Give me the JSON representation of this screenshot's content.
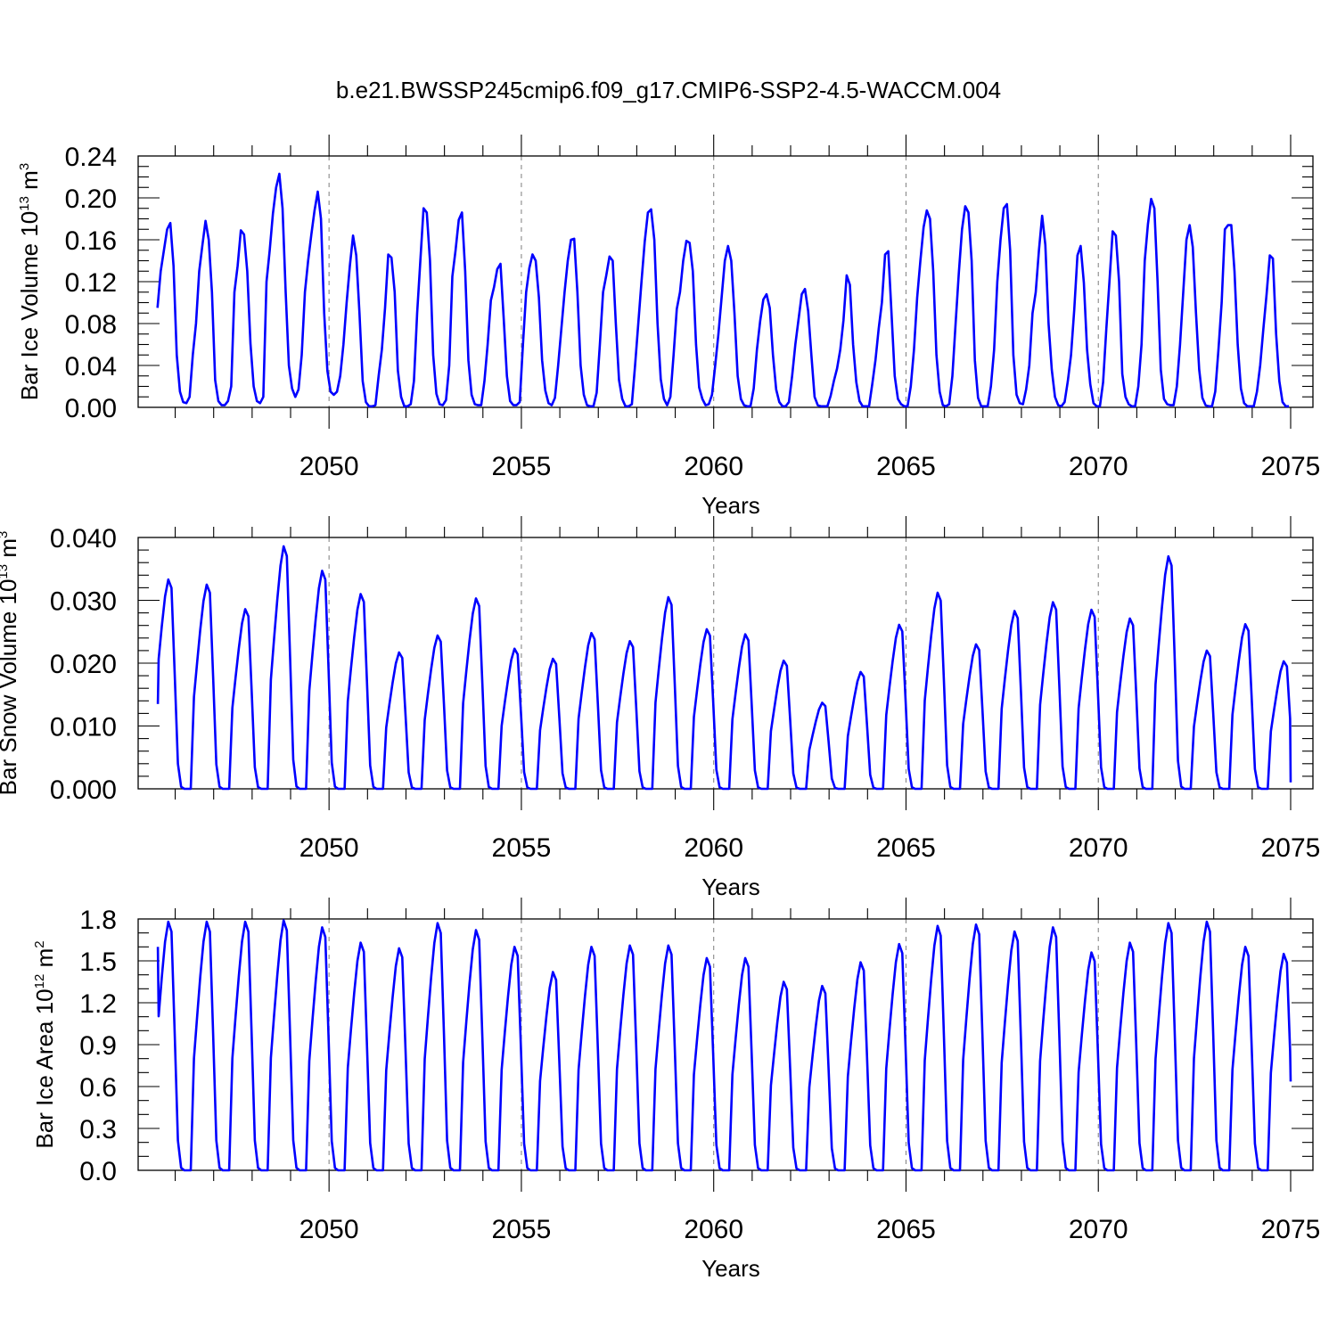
{
  "title": "b.e21.BWSSP245cmip6.f09_g17.CMIP6-SSP2-4.5-WACCM.004",
  "colors": {
    "line": "#0000ff",
    "grid": "#888888",
    "axis": "#000000"
  },
  "chart_data": [
    {
      "type": "line",
      "series_name": "Bar Ice Volume",
      "ylabel": {
        "text": "Bar Ice Volume 10",
        "sup1": "13",
        "unit": " m",
        "sup2": "3"
      },
      "xlabel": "Years",
      "xlim": [
        2045.5,
        2075
      ],
      "ylim": [
        0,
        0.24
      ],
      "yticks": [
        0.0,
        0.04,
        0.08,
        0.12,
        0.16,
        0.2,
        0.24
      ],
      "yticklabels": [
        "0.00",
        "0.04",
        "0.08",
        "0.12",
        "0.16",
        "0.20",
        "0.24"
      ],
      "yminor_step": 0.01,
      "xticks": [
        2050,
        2055,
        2060,
        2065,
        2070,
        2075
      ],
      "xticklabels": [
        "2050",
        "2055",
        "2060",
        "2065",
        "2070",
        "2075"
      ],
      "vlines": [
        2050,
        2055,
        2060,
        2065,
        2070
      ],
      "x_start": 2045.54,
      "x_step": 0.0833333,
      "values": [
        0.095,
        0.13,
        0.15,
        0.17,
        0.176,
        0.135,
        0.05,
        0.015,
        0.005,
        0.004,
        0.01,
        0.05,
        0.08,
        0.13,
        0.155,
        0.178,
        0.16,
        0.11,
        0.026,
        0.006,
        0.002,
        0.002,
        0.006,
        0.02,
        0.11,
        0.135,
        0.169,
        0.165,
        0.13,
        0.061,
        0.02,
        0.006,
        0.004,
        0.01,
        0.12,
        0.15,
        0.185,
        0.21,
        0.223,
        0.19,
        0.11,
        0.04,
        0.018,
        0.01,
        0.017,
        0.05,
        0.11,
        0.14,
        0.165,
        0.188,
        0.206,
        0.18,
        0.09,
        0.035,
        0.015,
        0.012,
        0.015,
        0.03,
        0.06,
        0.1,
        0.135,
        0.164,
        0.145,
        0.09,
        0.025,
        0.005,
        0.001,
        0.001,
        0.002,
        0.03,
        0.055,
        0.095,
        0.146,
        0.143,
        0.11,
        0.035,
        0.01,
        0.001,
        0.001,
        0.003,
        0.025,
        0.09,
        0.14,
        0.19,
        0.186,
        0.14,
        0.05,
        0.013,
        0.003,
        0.002,
        0.007,
        0.04,
        0.125,
        0.15,
        0.179,
        0.186,
        0.13,
        0.045,
        0.012,
        0.003,
        0.002,
        0.002,
        0.025,
        0.06,
        0.102,
        0.115,
        0.132,
        0.137,
        0.085,
        0.03,
        0.006,
        0.002,
        0.002,
        0.005,
        0.06,
        0.11,
        0.133,
        0.146,
        0.14,
        0.105,
        0.045,
        0.016,
        0.004,
        0.002,
        0.009,
        0.04,
        0.075,
        0.11,
        0.14,
        0.16,
        0.161,
        0.11,
        0.04,
        0.012,
        0.002,
        0.001,
        0.001,
        0.014,
        0.06,
        0.11,
        0.126,
        0.144,
        0.14,
        0.08,
        0.026,
        0.008,
        0.001,
        0.001,
        0.003,
        0.04,
        0.08,
        0.12,
        0.158,
        0.186,
        0.189,
        0.16,
        0.08,
        0.027,
        0.008,
        0.002,
        0.01,
        0.05,
        0.094,
        0.11,
        0.14,
        0.159,
        0.157,
        0.13,
        0.06,
        0.019,
        0.008,
        0.002,
        0.003,
        0.012,
        0.04,
        0.07,
        0.105,
        0.14,
        0.154,
        0.14,
        0.09,
        0.03,
        0.008,
        0.002,
        0.001,
        0.001,
        0.018,
        0.055,
        0.082,
        0.103,
        0.108,
        0.095,
        0.05,
        0.017,
        0.005,
        0.001,
        0.001,
        0.005,
        0.03,
        0.06,
        0.084,
        0.108,
        0.113,
        0.092,
        0.05,
        0.01,
        0.002,
        0.001,
        0.001,
        0.001,
        0.011,
        0.025,
        0.037,
        0.055,
        0.083,
        0.126,
        0.117,
        0.06,
        0.024,
        0.006,
        0.001,
        0.001,
        0.001,
        0.022,
        0.045,
        0.075,
        0.1,
        0.146,
        0.149,
        0.09,
        0.03,
        0.008,
        0.003,
        0.001,
        0.001,
        0.02,
        0.055,
        0.105,
        0.14,
        0.172,
        0.188,
        0.18,
        0.13,
        0.05,
        0.015,
        0.002,
        0.001,
        0.003,
        0.03,
        0.08,
        0.128,
        0.17,
        0.192,
        0.186,
        0.14,
        0.045,
        0.009,
        0.001,
        0.001,
        0.001,
        0.02,
        0.055,
        0.12,
        0.16,
        0.19,
        0.194,
        0.15,
        0.05,
        0.012,
        0.004,
        0.003,
        0.017,
        0.04,
        0.09,
        0.11,
        0.15,
        0.183,
        0.155,
        0.08,
        0.036,
        0.01,
        0.002,
        0.001,
        0.005,
        0.025,
        0.05,
        0.093,
        0.145,
        0.154,
        0.119,
        0.055,
        0.022,
        0.004,
        0.001,
        0.001,
        0.024,
        0.075,
        0.12,
        0.168,
        0.164,
        0.12,
        0.032,
        0.01,
        0.003,
        0.001,
        0.001,
        0.02,
        0.06,
        0.14,
        0.175,
        0.199,
        0.19,
        0.12,
        0.036,
        0.008,
        0.003,
        0.002,
        0.002,
        0.02,
        0.06,
        0.11,
        0.16,
        0.174,
        0.153,
        0.09,
        0.036,
        0.009,
        0.002,
        0.001,
        0.001,
        0.015,
        0.055,
        0.1,
        0.17,
        0.174,
        0.174,
        0.13,
        0.06,
        0.018,
        0.004,
        0.001,
        0.001,
        0.001,
        0.015,
        0.04,
        0.075,
        0.108,
        0.145,
        0.142,
        0.07,
        0.025,
        0.005,
        0.001,
        0.001,
        0.002,
        0.02
      ]
    },
    {
      "type": "line",
      "series_name": "Bar Snow Volume",
      "ylabel": {
        "text": "Bar Snow Volume 10",
        "sup1": "13",
        "unit": " m",
        "sup2": "3"
      },
      "xlabel": "Years",
      "xlim": [
        2045.5,
        2075
      ],
      "ylim": [
        0,
        0.04
      ],
      "yticks": [
        0.0,
        0.01,
        0.02,
        0.03,
        0.04
      ],
      "yticklabels": [
        "0.000",
        "0.010",
        "0.020",
        "0.030",
        "0.040"
      ],
      "yminor_step": 0.002,
      "xticks": [
        2050,
        2055,
        2060,
        2065,
        2070,
        2075
      ],
      "xticklabels": [
        "2050",
        "2055",
        "2060",
        "2065",
        "2070",
        "2075"
      ],
      "vlines": [
        2050,
        2055,
        2060,
        2065,
        2070
      ],
      "peaks": [
        [
          2045.55,
          0.0135
        ],
        [
          2045.82,
          0.0333
        ],
        [
          2046.82,
          0.0325
        ],
        [
          2047.82,
          0.0286
        ],
        [
          2048.82,
          0.0386
        ],
        [
          2049.82,
          0.0347
        ],
        [
          2050.82,
          0.031
        ],
        [
          2051.82,
          0.0217
        ],
        [
          2052.82,
          0.0244
        ],
        [
          2053.82,
          0.0303
        ],
        [
          2054.82,
          0.0223
        ],
        [
          2055.82,
          0.0207
        ],
        [
          2056.82,
          0.0248
        ],
        [
          2057.82,
          0.0235
        ],
        [
          2058.82,
          0.0305
        ],
        [
          2059.82,
          0.0254
        ],
        [
          2060.82,
          0.0246
        ],
        [
          2061.82,
          0.0204
        ],
        [
          2062.82,
          0.0137
        ],
        [
          2063.82,
          0.0186
        ],
        [
          2064.82,
          0.0261
        ],
        [
          2065.82,
          0.0312
        ],
        [
          2066.82,
          0.023
        ],
        [
          2067.82,
          0.0283
        ],
        [
          2068.82,
          0.0297
        ],
        [
          2069.82,
          0.0285
        ],
        [
          2070.82,
          0.0271
        ],
        [
          2071.82,
          0.037
        ],
        [
          2072.82,
          0.022
        ],
        [
          2073.82,
          0.0262
        ],
        [
          2074.82,
          0.0203
        ]
      ]
    },
    {
      "type": "line",
      "series_name": "Bar Ice Area",
      "ylabel": {
        "text": "Bar Ice Area 10",
        "sup1": "12",
        "unit": " m",
        "sup2": "2"
      },
      "xlabel": "Years",
      "xlim": [
        2045.5,
        2075
      ],
      "ylim": [
        0,
        1.8
      ],
      "yticks": [
        0.0,
        0.3,
        0.6,
        0.9,
        1.2,
        1.5,
        1.8
      ],
      "yticklabels": [
        "0.0",
        "0.3",
        "0.6",
        "0.9",
        "1.2",
        "1.5",
        "1.8"
      ],
      "yminor_step": 0.1,
      "xticks": [
        2050,
        2055,
        2060,
        2065,
        2070,
        2075
      ],
      "xticklabels": [
        "2050",
        "2055",
        "2060",
        "2065",
        "2070",
        "2075"
      ],
      "vlines": [
        2050,
        2055,
        2060,
        2065,
        2070
      ],
      "peaks": [
        [
          2045.55,
          1.6
        ],
        [
          2045.82,
          1.78
        ],
        [
          2046.82,
          1.78
        ],
        [
          2047.82,
          1.78
        ],
        [
          2048.82,
          1.79
        ],
        [
          2049.82,
          1.74
        ],
        [
          2050.82,
          1.63
        ],
        [
          2051.82,
          1.59
        ],
        [
          2052.82,
          1.77
        ],
        [
          2053.82,
          1.72
        ],
        [
          2054.82,
          1.6
        ],
        [
          2055.82,
          1.42
        ],
        [
          2056.82,
          1.6
        ],
        [
          2057.82,
          1.61
        ],
        [
          2058.82,
          1.61
        ],
        [
          2059.82,
          1.52
        ],
        [
          2060.82,
          1.52
        ],
        [
          2061.82,
          1.35
        ],
        [
          2062.82,
          1.32
        ],
        [
          2063.82,
          1.49
        ],
        [
          2064.82,
          1.62
        ],
        [
          2065.82,
          1.75
        ],
        [
          2066.82,
          1.76
        ],
        [
          2067.82,
          1.71
        ],
        [
          2068.82,
          1.74
        ],
        [
          2069.82,
          1.56
        ],
        [
          2070.82,
          1.63
        ],
        [
          2071.82,
          1.77
        ],
        [
          2072.82,
          1.78
        ],
        [
          2073.82,
          1.6
        ],
        [
          2074.82,
          1.55
        ]
      ]
    }
  ]
}
